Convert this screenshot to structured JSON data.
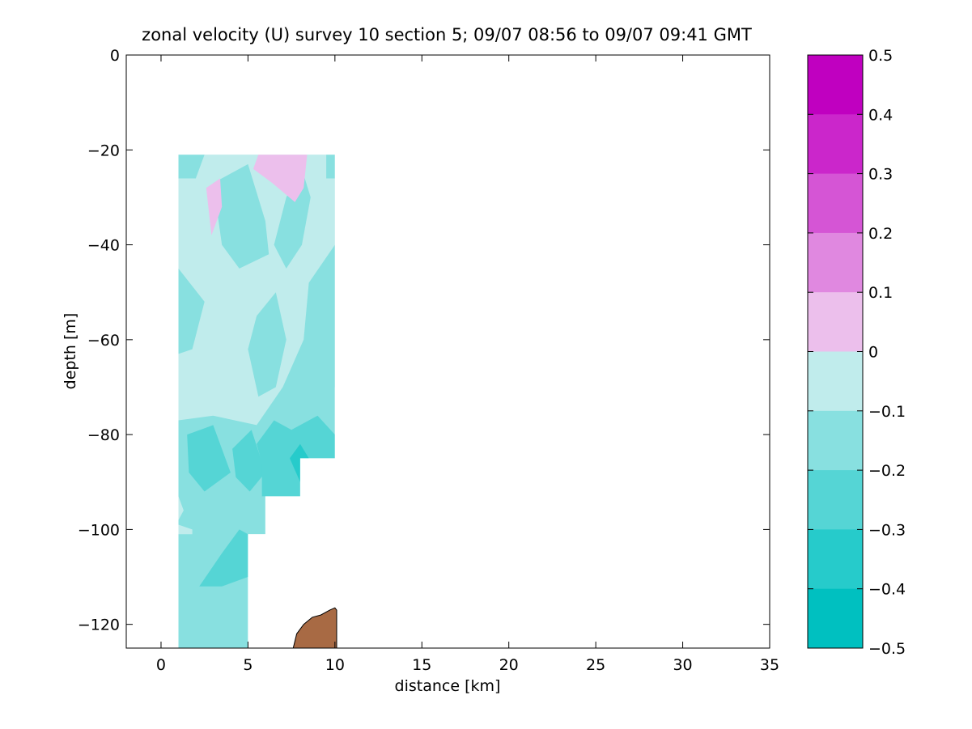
{
  "chart_data": {
    "type": "heatmap",
    "title": "zonal velocity (U) survey 10 section 5; 09/07 08:56 to 09/07 09:41 GMT",
    "xlabel": "distance [km]",
    "ylabel": "depth [m]",
    "xlim": [
      -2,
      35
    ],
    "ylim": [
      -125,
      0
    ],
    "xticks": [
      0,
      5,
      10,
      15,
      20,
      25,
      30,
      35
    ],
    "yticks": [
      0,
      -20,
      -40,
      -60,
      -80,
      -100,
      -120
    ],
    "grid": false,
    "colorbar": {
      "ticks": [
        "0.5",
        "0.4",
        "0.3",
        "0.2",
        "0.1",
        "0",
        "−0.1",
        "−0.2",
        "−0.3",
        "−0.4",
        "−0.5"
      ],
      "levels": [
        {
          "range": [
            0.4,
            0.5
          ],
          "color": "#c000c0"
        },
        {
          "range": [
            0.3,
            0.4
          ],
          "color": "#cb26cb"
        },
        {
          "range": [
            0.2,
            0.3
          ],
          "color": "#d555d5"
        },
        {
          "range": [
            0.1,
            0.2
          ],
          "color": "#e088e0"
        },
        {
          "range": [
            0.0,
            0.1
          ],
          "color": "#ecbfec"
        },
        {
          "range": [
            -0.1,
            0.0
          ],
          "color": "#c0ecec"
        },
        {
          "range": [
            -0.2,
            -0.1
          ],
          "color": "#88e0e0"
        },
        {
          "range": [
            -0.3,
            -0.2
          ],
          "color": "#55d5d5"
        },
        {
          "range": [
            -0.4,
            -0.3
          ],
          "color": "#26cbcb"
        },
        {
          "range": [
            -0.5,
            -0.4
          ],
          "color": "#00c0c0"
        }
      ]
    },
    "field": {
      "background_value": -0.15,
      "regions": [
        {
          "value": -0.05,
          "points": [
            [
              1,
              -21
            ],
            [
              10,
              -21
            ],
            [
              10,
              -40
            ],
            [
              8.5,
              -48
            ],
            [
              8.2,
              -60
            ],
            [
              7,
              -70
            ],
            [
              5.5,
              -78
            ],
            [
              3,
              -76
            ],
            [
              1,
              -77
            ]
          ]
        },
        {
          "value": -0.15,
          "points": [
            [
              1,
              -21
            ],
            [
              2.5,
              -21
            ],
            [
              2,
              -26
            ],
            [
              1,
              -26
            ]
          ]
        },
        {
          "value": -0.15,
          "points": [
            [
              10,
              -21
            ],
            [
              9.5,
              -21
            ],
            [
              9.5,
              -26
            ],
            [
              10,
              -26
            ]
          ]
        },
        {
          "value": -0.15,
          "points": [
            [
              3,
              -27
            ],
            [
              5,
              -23
            ],
            [
              6,
              -35
            ],
            [
              6.2,
              -42
            ],
            [
              4.5,
              -45
            ],
            [
              3.5,
              -40
            ]
          ]
        },
        {
          "value": -0.15,
          "points": [
            [
              1,
              -45
            ],
            [
              2.5,
              -52
            ],
            [
              1.8,
              -62
            ],
            [
              1,
              -63
            ]
          ]
        },
        {
          "value": -0.15,
          "points": [
            [
              6.5,
              -40
            ],
            [
              7.2,
              -30
            ],
            [
              8.1,
              -24
            ],
            [
              8.6,
              -30
            ],
            [
              8.1,
              -40
            ],
            [
              7.2,
              -45
            ]
          ]
        },
        {
          "value": -0.15,
          "points": [
            [
              5.5,
              -55
            ],
            [
              6.6,
              -50
            ],
            [
              7.2,
              -60
            ],
            [
              6.6,
              -70
            ],
            [
              5.6,
              -72
            ],
            [
              5,
              -62
            ]
          ]
        },
        {
          "value": -0.15,
          "points": [
            [
              10,
              -40
            ],
            [
              9,
              -48
            ],
            [
              9.2,
              -58
            ],
            [
              8.9,
              -66
            ],
            [
              10,
              -70
            ]
          ]
        },
        {
          "value": 0.05,
          "points": [
            [
              5.3,
              -24
            ],
            [
              5.6,
              -21
            ],
            [
              8.4,
              -21
            ],
            [
              8.2,
              -28
            ],
            [
              7.7,
              -31
            ],
            [
              6.4,
              -27
            ]
          ]
        },
        {
          "value": 0.05,
          "points": [
            [
              2.6,
              -28
            ],
            [
              3.4,
              -26
            ],
            [
              3.5,
              -32
            ],
            [
              2.9,
              -38
            ]
          ]
        },
        {
          "value": -0.25,
          "points": [
            [
              1.5,
              -80
            ],
            [
              3,
              -78
            ],
            [
              4,
              -88
            ],
            [
              2.5,
              -92
            ],
            [
              1.6,
              -88
            ]
          ]
        },
        {
          "value": -0.25,
          "points": [
            [
              4.1,
              -83
            ],
            [
              5.2,
              -79
            ],
            [
              6,
              -88
            ],
            [
              5.1,
              -92
            ],
            [
              4.3,
              -89
            ]
          ]
        },
        {
          "value": -0.25,
          "points": [
            [
              5.5,
              -82
            ],
            [
              6.5,
              -77
            ],
            [
              7.5,
              -79
            ],
            [
              9,
              -76
            ],
            [
              10,
              -80
            ],
            [
              10,
              -85
            ],
            [
              8,
              -85
            ],
            [
              8,
              -93
            ],
            [
              5.8,
              -93
            ],
            [
              5.8,
              -86
            ]
          ]
        },
        {
          "value": -0.25,
          "points": [
            [
              2.2,
              -112
            ],
            [
              3.5,
              -105
            ],
            [
              4.5,
              -100
            ],
            [
              5,
              -101
            ],
            [
              5,
              -110
            ],
            [
              3.5,
              -112
            ]
          ]
        },
        {
          "value": -0.35,
          "points": [
            [
              7.4,
              -85
            ],
            [
              8.0,
              -82
            ],
            [
              8.5,
              -85
            ],
            [
              8,
              -90
            ]
          ]
        },
        {
          "value": -0.05,
          "points": [
            [
              1,
              -99
            ],
            [
              1.8,
              -100
            ],
            [
              1.8,
              -101
            ],
            [
              1,
              -101
            ]
          ]
        },
        {
          "value": -0.05,
          "points": [
            [
              1,
              -93
            ],
            [
              1.3,
              -96
            ],
            [
              1,
              -98
            ]
          ]
        }
      ],
      "data_extent": [
        [
          1,
          -21
        ],
        [
          10,
          -21
        ],
        [
          10,
          -85
        ],
        [
          8,
          -85
        ],
        [
          8,
          -93
        ],
        [
          6,
          -93
        ],
        [
          6,
          -101
        ],
        [
          5,
          -101
        ],
        [
          5,
          -125
        ],
        [
          1,
          -125
        ]
      ],
      "seafloor": [
        [
          7.6,
          -125
        ],
        [
          7.8,
          -122
        ],
        [
          8.2,
          -120
        ],
        [
          8.7,
          -118.5
        ],
        [
          9.2,
          -118
        ],
        [
          9.7,
          -117
        ],
        [
          10,
          -116.5
        ],
        [
          10.1,
          -117
        ],
        [
          10.1,
          -125
        ]
      ],
      "seafloor_color": "#a86a44"
    }
  }
}
